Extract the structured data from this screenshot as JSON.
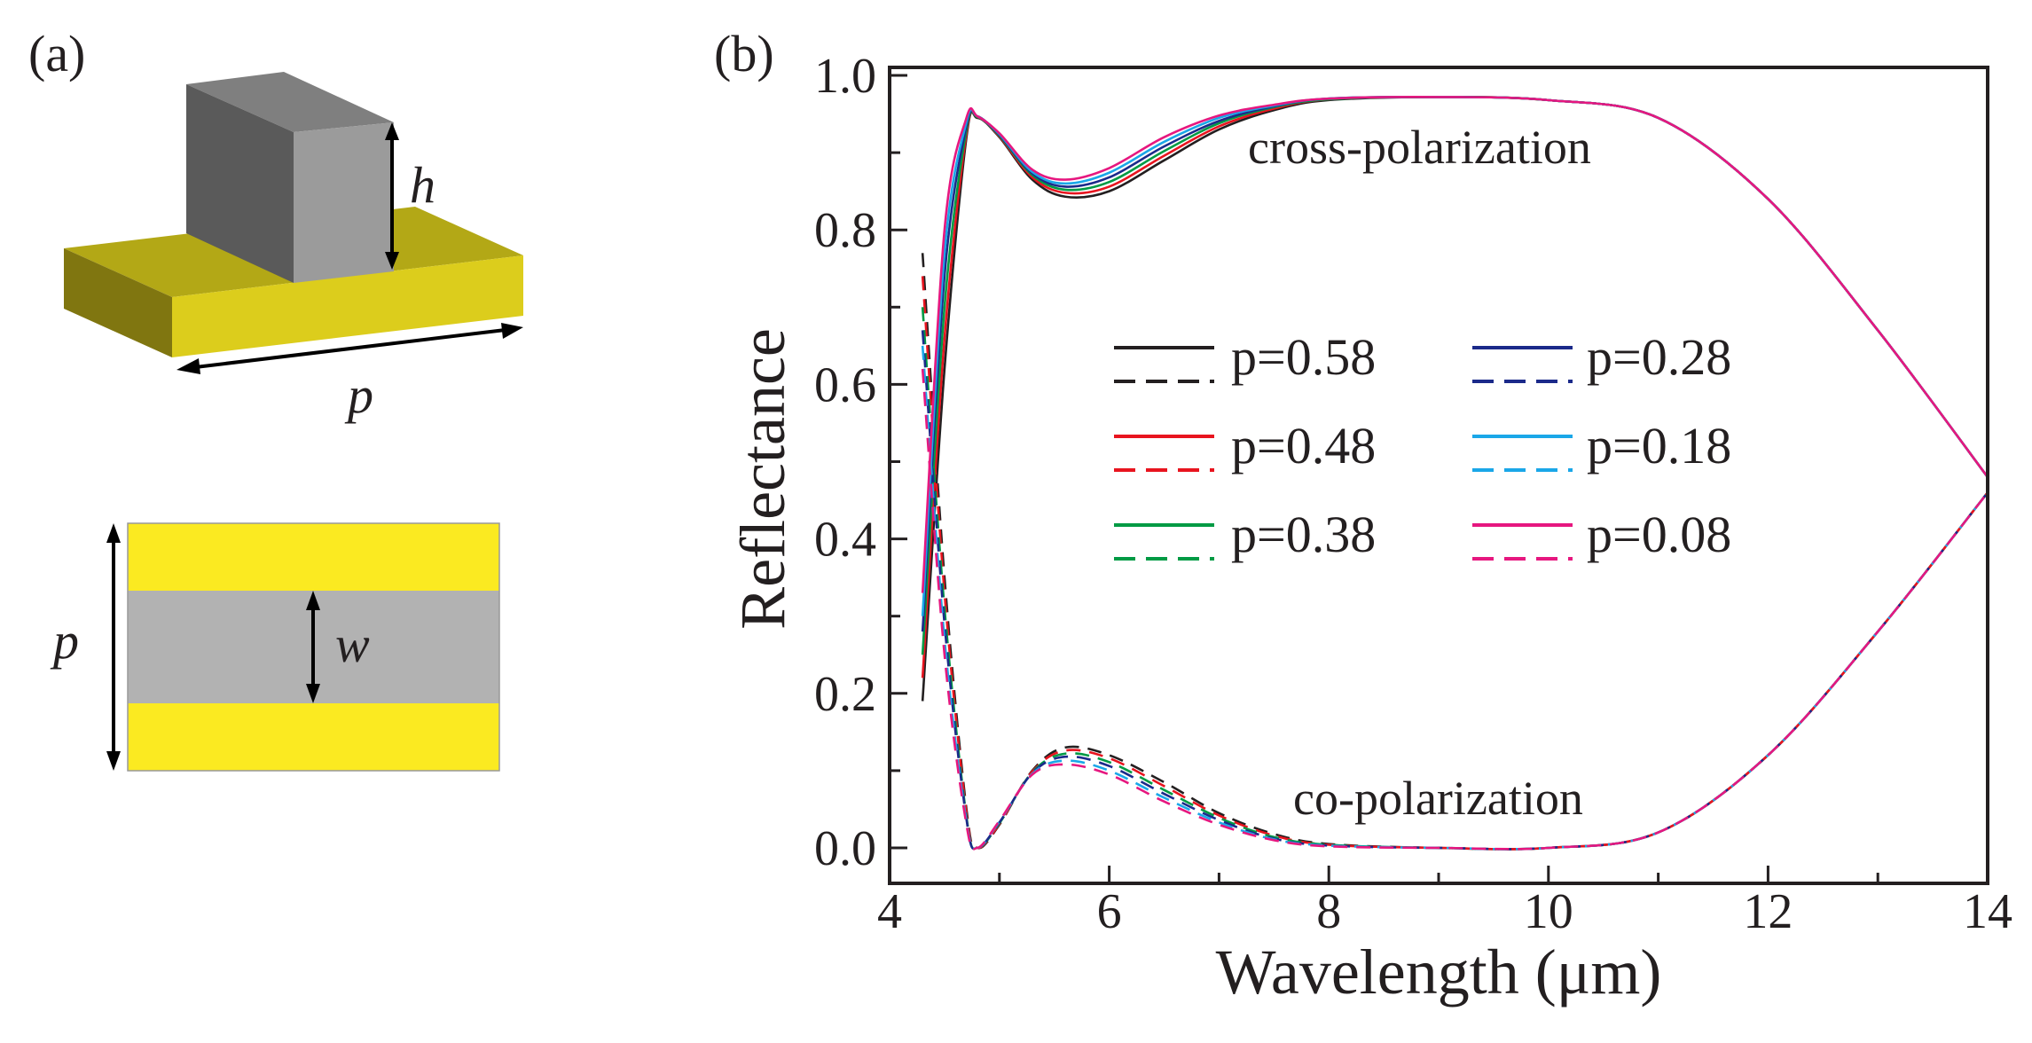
{
  "panel_a": {
    "label": "(a)",
    "dim_h": "h",
    "dim_p_top": "p",
    "dim_p_side": "p",
    "dim_w": "w",
    "colors": {
      "gold_top": "#b3a816",
      "gold_front": "#dccd1c",
      "gold_side": "#807610",
      "pillar_top": "#7f7f7f",
      "pillar_left": "#5a5a5a",
      "pillar_front": "#9b9b9b",
      "strip_yellow": "#fbea21",
      "strip_grey": "#b2b2b2"
    }
  },
  "chart_data": {
    "type": "line",
    "panel_label": "(b)",
    "title": "",
    "xlabel": "Wavelength (μm)",
    "ylabel": "Reflectance",
    "xlim": [
      4,
      14
    ],
    "ylim": [
      -0.05,
      1.0
    ],
    "xticks": [
      "4",
      "6",
      "8",
      "10",
      "12",
      "14"
    ],
    "yticks": [
      "0.0",
      "0.2",
      "0.4",
      "0.6",
      "0.8",
      "1.0"
    ],
    "grid": false,
    "legend_position": "center",
    "annotations": {
      "cross": "cross-polarization",
      "co": "co-polarization"
    },
    "x": [
      4.3,
      4.5,
      4.7,
      4.8,
      5.0,
      5.3,
      5.6,
      6.0,
      6.5,
      7.0,
      7.5,
      8.0,
      9.0,
      10.0,
      11.0,
      12.0,
      13.0,
      14.0
    ],
    "series": [
      {
        "name": "p=0.58",
        "p": "0.58",
        "color": "#231f20",
        "cross": [
          0.19,
          0.62,
          0.92,
          0.945,
          0.92,
          0.865,
          0.843,
          0.85,
          0.89,
          0.93,
          0.955,
          0.968,
          0.972,
          0.968,
          0.945,
          0.84,
          0.67,
          0.48
        ],
        "co": [
          0.77,
          0.35,
          0.05,
          0.0,
          0.03,
          0.1,
          0.13,
          0.12,
          0.085,
          0.045,
          0.018,
          0.005,
          0.0,
          0.0,
          0.02,
          0.12,
          0.28,
          0.46
        ]
      },
      {
        "name": "p=0.48",
        "p": "0.48",
        "color": "#e8141f",
        "cross": [
          0.22,
          0.66,
          0.925,
          0.946,
          0.921,
          0.868,
          0.848,
          0.856,
          0.896,
          0.934,
          0.957,
          0.969,
          0.972,
          0.968,
          0.945,
          0.84,
          0.67,
          0.48
        ],
        "co": [
          0.74,
          0.33,
          0.045,
          0.0,
          0.031,
          0.099,
          0.126,
          0.116,
          0.08,
          0.042,
          0.016,
          0.004,
          0.0,
          0.0,
          0.02,
          0.12,
          0.28,
          0.46
        ]
      },
      {
        "name": "p=0.38",
        "p": "0.38",
        "color": "#009a44",
        "cross": [
          0.25,
          0.7,
          0.93,
          0.946,
          0.922,
          0.871,
          0.852,
          0.862,
          0.902,
          0.938,
          0.959,
          0.969,
          0.972,
          0.968,
          0.945,
          0.84,
          0.67,
          0.48
        ],
        "co": [
          0.7,
          0.31,
          0.04,
          0.0,
          0.032,
          0.098,
          0.122,
          0.111,
          0.075,
          0.039,
          0.014,
          0.004,
          0.0,
          0.0,
          0.02,
          0.12,
          0.28,
          0.46
        ]
      },
      {
        "name": "p=0.28",
        "p": "0.28",
        "color": "#1b2a8a",
        "cross": [
          0.28,
          0.74,
          0.935,
          0.947,
          0.923,
          0.873,
          0.856,
          0.868,
          0.908,
          0.941,
          0.96,
          0.97,
          0.972,
          0.968,
          0.945,
          0.84,
          0.67,
          0.48
        ],
        "co": [
          0.67,
          0.29,
          0.037,
          0.0,
          0.033,
          0.097,
          0.118,
          0.106,
          0.07,
          0.036,
          0.012,
          0.003,
          0.0,
          0.0,
          0.02,
          0.12,
          0.28,
          0.46
        ]
      },
      {
        "name": "p=0.18",
        "p": "0.18",
        "color": "#1aa7e8",
        "cross": [
          0.3,
          0.77,
          0.94,
          0.947,
          0.924,
          0.875,
          0.86,
          0.874,
          0.914,
          0.945,
          0.961,
          0.97,
          0.972,
          0.968,
          0.945,
          0.84,
          0.67,
          0.48
        ],
        "co": [
          0.65,
          0.27,
          0.034,
          0.0,
          0.034,
          0.096,
          0.113,
          0.1,
          0.065,
          0.033,
          0.011,
          0.003,
          0.0,
          0.0,
          0.02,
          0.12,
          0.28,
          0.46
        ]
      },
      {
        "name": "p=0.08",
        "p": "0.08",
        "color": "#e6177f",
        "cross": [
          0.33,
          0.8,
          0.945,
          0.947,
          0.925,
          0.878,
          0.865,
          0.88,
          0.92,
          0.948,
          0.962,
          0.97,
          0.972,
          0.968,
          0.945,
          0.84,
          0.67,
          0.48
        ],
        "co": [
          0.62,
          0.25,
          0.03,
          0.0,
          0.035,
          0.095,
          0.108,
          0.095,
          0.06,
          0.03,
          0.01,
          0.002,
          0.0,
          0.0,
          0.02,
          0.12,
          0.28,
          0.46
        ]
      }
    ]
  }
}
